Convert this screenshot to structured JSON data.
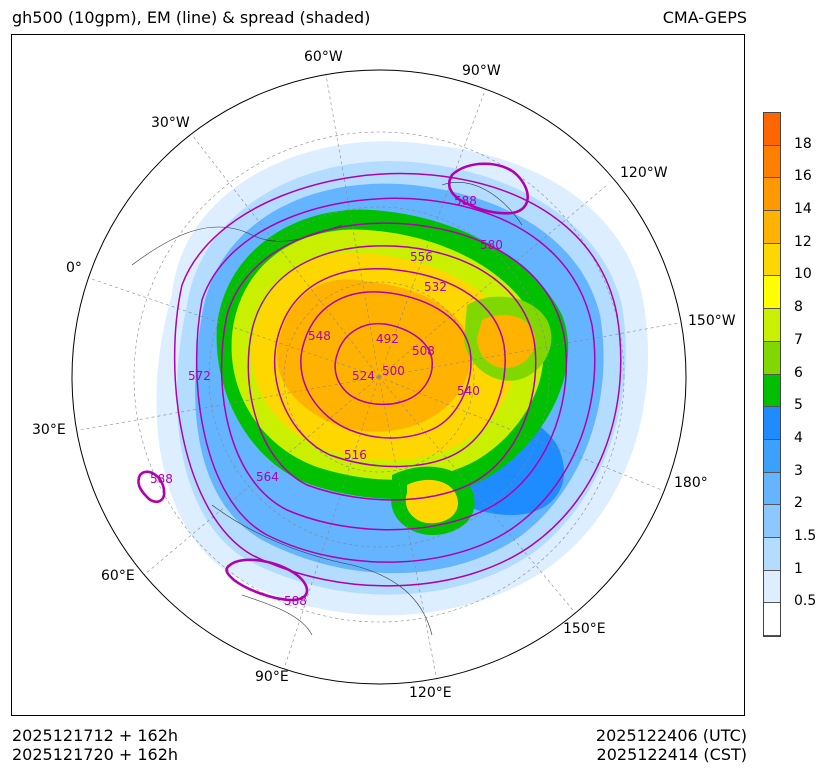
{
  "header": {
    "title_left": "gh500 (10gpm), EM (line) & spread (shaded)",
    "title_right": "CMA-GEPS"
  },
  "footer": {
    "left_line1": "2025121712 + 162h",
    "left_line2": "2025121720 + 162h",
    "right_line1": "2025122406 (UTC)",
    "right_line2": "2025122414 (CST)"
  },
  "map": {
    "projection": "north-polar-stereographic",
    "longitude_labels": [
      "60°W",
      "90°W",
      "30°W",
      "120°W",
      "0°",
      "150°W",
      "30°E",
      "180°",
      "60°E",
      "150°E",
      "90°E",
      "120°E"
    ],
    "contour_labels": [
      "588",
      "580",
      "556",
      "532",
      "548",
      "492",
      "508",
      "500",
      "524",
      "540",
      "572",
      "516",
      "564",
      "588",
      "588"
    ],
    "contour_color": "#b000b0"
  },
  "colorbar": {
    "labels": [
      "18",
      "16",
      "14",
      "12",
      "10",
      "8",
      "7",
      "6",
      "5",
      "4",
      "3",
      "2",
      "1.5",
      "1",
      "0.5"
    ],
    "colors": [
      "#ff6600",
      "#ff7f00",
      "#ff9900",
      "#ffb200",
      "#ffd700",
      "#ffff00",
      "#c8f000",
      "#80d800",
      "#00c000",
      "#1e8cff",
      "#3ca0ff",
      "#64b4ff",
      "#8cc8ff",
      "#b4dcff",
      "#dceeff",
      "#ffffff"
    ]
  }
}
